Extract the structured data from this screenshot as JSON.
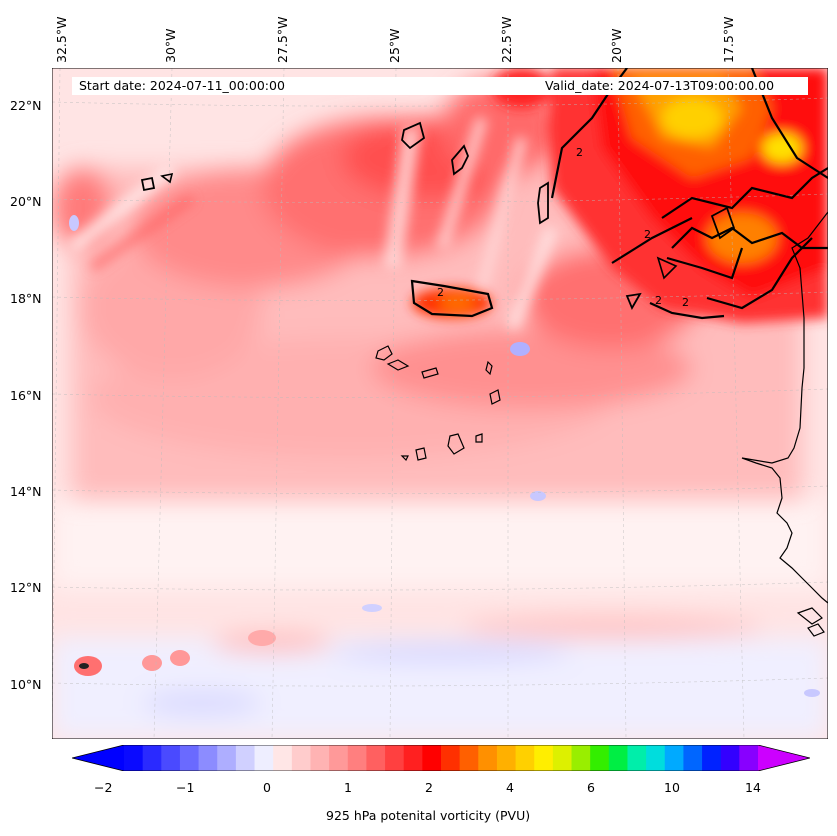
{
  "header": {
    "start_date": "Start date: 2024-07-11_00:00:00",
    "valid_date": "Valid_date: 2024-07-13T09:00:00.00"
  },
  "map": {
    "field": "925 hPa potenital vorticity (PVU)",
    "contour_label": "2",
    "longitude_labels": [
      "32.5°W",
      "30°W",
      "27.5°W",
      "25°W",
      "22.5°W",
      "20°W",
      "17.5°W"
    ],
    "latitude_labels": [
      "22°N",
      "20°N",
      "18°N",
      "16°N",
      "14°N",
      "12°N",
      "10°N"
    ]
  },
  "colorbar": {
    "label": "925 hPa potenital vorticity (PVU)",
    "ticks": [
      "−2",
      "−1",
      "0",
      "1",
      "2",
      "4",
      "6",
      "10",
      "14"
    ],
    "colors": [
      "#0a0aff",
      "#2a2aff",
      "#4a4aff",
      "#6a6aff",
      "#8c8cff",
      "#aeaeff",
      "#d0d0ff",
      "#eeeeff",
      "#ffe6e6",
      "#ffcccc",
      "#ffb3b3",
      "#ff9999",
      "#ff7f7f",
      "#ff6060",
      "#ff4040",
      "#ff2020",
      "#ff0000",
      "#ff3000",
      "#ff6000",
      "#ff9000",
      "#ffb000",
      "#ffd000",
      "#ffee00",
      "#ddf000",
      "#99ee00",
      "#33ee00",
      "#00ee44",
      "#00eeaa",
      "#00dddd",
      "#00aaff",
      "#0066ff",
      "#0022ff",
      "#3300ff",
      "#8800ff"
    ],
    "extend_min_color": "#0000ff",
    "extend_max_color": "#cc00ff"
  }
}
